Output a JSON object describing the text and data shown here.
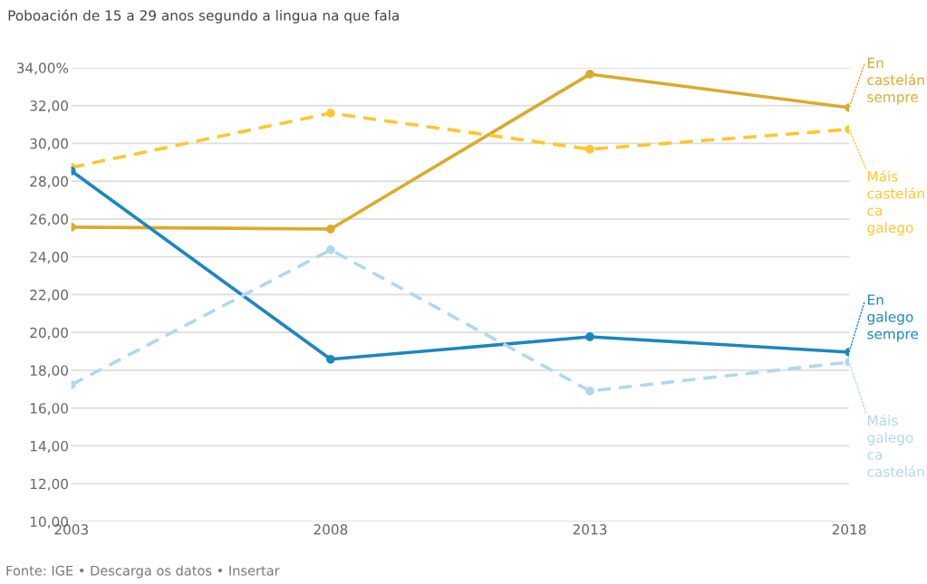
{
  "chart_data": {
    "type": "line",
    "title": "Poboación de 15 a 29 anos segundo a lingua na que fala",
    "x": [
      2003,
      2008,
      2013,
      2018
    ],
    "series": [
      {
        "name": "En castelán sempre",
        "color": "#d9ab2e",
        "line_style": "solid",
        "values": [
          25.57,
          25.47,
          33.66,
          31.89
        ]
      },
      {
        "name": "Máis castelán ca galego",
        "color": "#fcc731",
        "line_style": "dashed",
        "values": [
          28.73,
          31.6,
          29.69,
          30.74
        ]
      },
      {
        "name": "En galego sempre",
        "color": "#1b87c0",
        "line_style": "solid",
        "values": [
          28.54,
          18.58,
          19.77,
          18.96
        ]
      },
      {
        "name": "Máis galego ca castelán",
        "color": "#b2d8ea",
        "line_style": "dashed",
        "values": [
          17.23,
          24.37,
          16.9,
          18.43
        ]
      }
    ],
    "xlim": [
      2003,
      2018
    ],
    "xticks": [
      2003,
      2008,
      2013,
      2018
    ],
    "ylim": [
      10,
      34
    ],
    "yticks": [
      {
        "value": 10,
        "label": "10,00"
      },
      {
        "value": 12,
        "label": "12,00"
      },
      {
        "value": 14,
        "label": "14,00"
      },
      {
        "value": 16,
        "label": "16,00"
      },
      {
        "value": 18,
        "label": "18,00"
      },
      {
        "value": 20,
        "label": "20,00"
      },
      {
        "value": 22,
        "label": "22,00"
      },
      {
        "value": 24,
        "label": "24,00"
      },
      {
        "value": 26,
        "label": "26,00"
      },
      {
        "value": 28,
        "label": "28,00"
      },
      {
        "value": 30,
        "label": "30,00"
      },
      {
        "value": 32,
        "label": "32,00"
      },
      {
        "value": 34,
        "label": "34,00%"
      }
    ],
    "grid": "y",
    "marker": "circle",
    "legend": false,
    "annotations": [
      "Fonte: IGE • Descarga os datos • Insertar"
    ]
  }
}
